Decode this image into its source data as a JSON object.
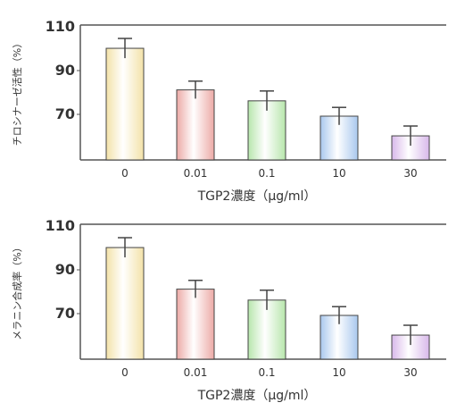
{
  "chart_data": [
    {
      "type": "bar",
      "ylabel": "チロシナーゼ活性（%）",
      "xlabel": "TGP2濃度（μg/ml）",
      "categories": [
        "0",
        "0.01",
        "0.1",
        "10",
        "30"
      ],
      "values": [
        101,
        82,
        77,
        70,
        61
      ],
      "errors": [
        4.5,
        4,
        4.5,
        4,
        4.5
      ],
      "ylim": [
        50,
        110
      ],
      "yticks": [
        "70",
        "90",
        "110"
      ],
      "grid": false,
      "colors": [
        "#f3e2a8",
        "#ecaaa6",
        "#b7e6ac",
        "#a9c8ee",
        "#d8b8ea"
      ]
    },
    {
      "type": "bar",
      "ylabel": "メラニン合成率（%）",
      "xlabel": "TGP2濃度（μg/ml）",
      "categories": [
        "0",
        "0.01",
        "0.1",
        "10",
        "30"
      ],
      "values": [
        101,
        82,
        77,
        70,
        61
      ],
      "errors": [
        4.5,
        4,
        4.5,
        4,
        4.5
      ],
      "ylim": [
        50,
        110
      ],
      "yticks": [
        "70",
        "90",
        "110"
      ],
      "grid": false,
      "colors": [
        "#f3e2a8",
        "#ecaaa6",
        "#b7e6ac",
        "#a9c8ee",
        "#d8b8ea"
      ]
    }
  ]
}
